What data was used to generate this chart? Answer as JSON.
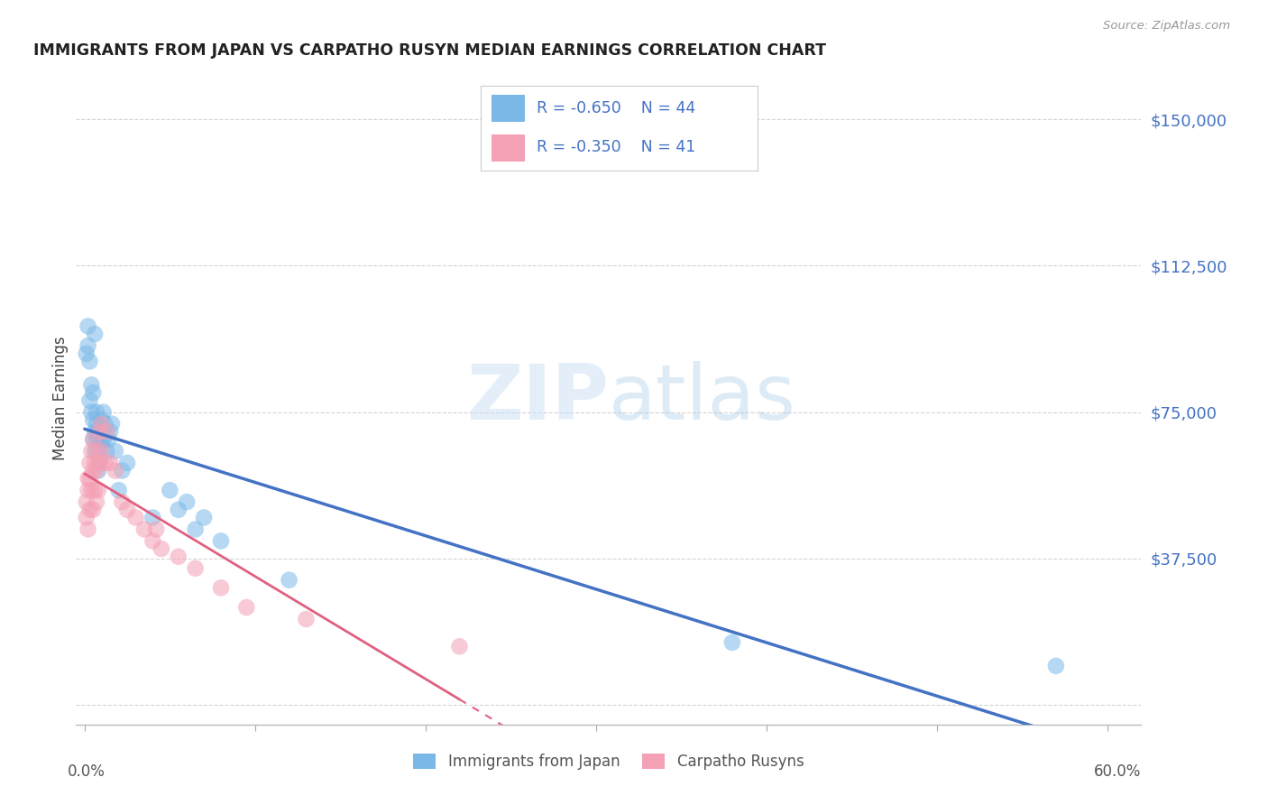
{
  "title": "IMMIGRANTS FROM JAPAN VS CARPATHO RUSYN MEDIAN EARNINGS CORRELATION CHART",
  "source": "Source: ZipAtlas.com",
  "ylabel": "Median Earnings",
  "legend1_r": "R = -0.650",
  "legend1_n": "N = 44",
  "legend2_r": "R = -0.350",
  "legend2_n": "N = 41",
  "legend_label1": "Immigrants from Japan",
  "legend_label2": "Carpatho Rusyns",
  "blue_color": "#7ab8e8",
  "pink_color": "#f4a0b5",
  "blue_line_color": "#4472c4",
  "pink_line_color": "#e06080",
  "japan_x": [
    0.001,
    0.002,
    0.002,
    0.003,
    0.003,
    0.004,
    0.004,
    0.005,
    0.005,
    0.005,
    0.006,
    0.006,
    0.006,
    0.007,
    0.007,
    0.007,
    0.008,
    0.008,
    0.008,
    0.009,
    0.009,
    0.01,
    0.01,
    0.011,
    0.011,
    0.012,
    0.013,
    0.014,
    0.015,
    0.016,
    0.018,
    0.02,
    0.022,
    0.025,
    0.04,
    0.05,
    0.055,
    0.06,
    0.065,
    0.07,
    0.08,
    0.12,
    0.38,
    0.57
  ],
  "japan_y": [
    90000,
    97000,
    92000,
    88000,
    78000,
    82000,
    75000,
    73000,
    68000,
    80000,
    95000,
    70000,
    65000,
    75000,
    68000,
    72000,
    70000,
    65000,
    60000,
    68000,
    63000,
    73000,
    67000,
    75000,
    68000,
    72000,
    65000,
    68000,
    70000,
    72000,
    65000,
    55000,
    60000,
    62000,
    48000,
    55000,
    50000,
    52000,
    45000,
    48000,
    42000,
    32000,
    16000,
    10000
  ],
  "rusyn_x": [
    0.001,
    0.001,
    0.002,
    0.002,
    0.002,
    0.003,
    0.003,
    0.003,
    0.004,
    0.004,
    0.005,
    0.005,
    0.005,
    0.006,
    0.006,
    0.007,
    0.007,
    0.007,
    0.008,
    0.008,
    0.009,
    0.009,
    0.01,
    0.01,
    0.012,
    0.013,
    0.015,
    0.018,
    0.022,
    0.025,
    0.03,
    0.035,
    0.04,
    0.042,
    0.045,
    0.055,
    0.065,
    0.08,
    0.095,
    0.13,
    0.22
  ],
  "rusyn_y": [
    52000,
    48000,
    58000,
    55000,
    45000,
    62000,
    58000,
    50000,
    65000,
    55000,
    68000,
    60000,
    50000,
    62000,
    55000,
    65000,
    60000,
    52000,
    62000,
    55000,
    70000,
    62000,
    65000,
    72000,
    62000,
    70000,
    62000,
    60000,
    52000,
    50000,
    48000,
    45000,
    42000,
    45000,
    40000,
    38000,
    35000,
    30000,
    25000,
    22000,
    15000
  ],
  "xlim": [
    -0.005,
    0.62
  ],
  "ylim": [
    -5000,
    162000
  ],
  "y_ticks": [
    0,
    37500,
    75000,
    112500,
    150000
  ],
  "y_tick_labels": [
    "",
    "$37,500",
    "$75,000",
    "$112,500",
    "$150,000"
  ],
  "x_ticks": [
    0.0,
    0.1,
    0.2,
    0.3,
    0.4,
    0.5,
    0.6
  ],
  "bg_color": "#ffffff",
  "grid_color": "#d0d0d0",
  "text_color_blue": "#4472c4",
  "text_color_title": "#222222",
  "watermark_text": "ZIPatlas",
  "watermark_color": "#c8dff5",
  "watermark_alpha": 0.5
}
